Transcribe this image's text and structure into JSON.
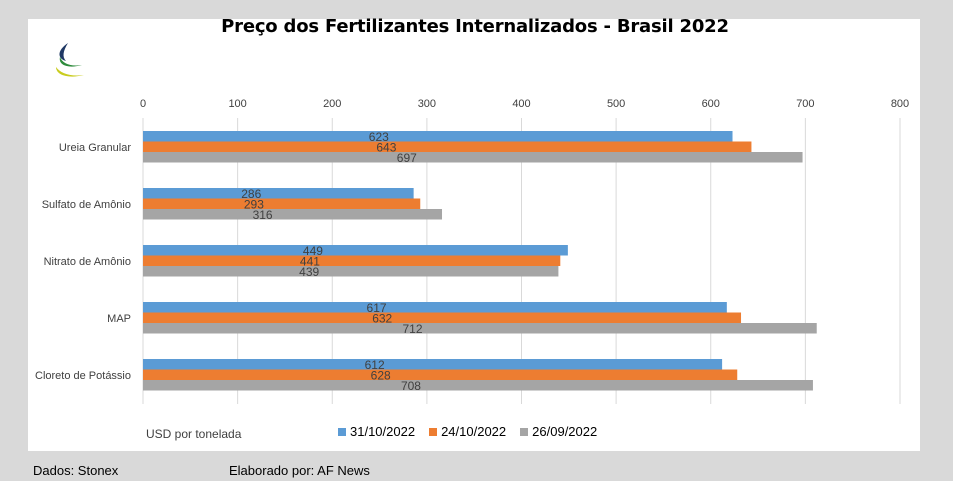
{
  "chart_data": {
    "type": "bar",
    "orientation": "horizontal",
    "title": "Preço dos Fertilizantes Internalizados  - Brasil 2022",
    "categories": [
      "Ureia Granular",
      "Sulfato de Amônio",
      "Nitrato de Amônio",
      "MAP",
      "Cloreto de Potássio"
    ],
    "series": [
      {
        "name": "31/10/2022",
        "color": "#5b9bd5",
        "values": [
          623,
          286,
          449,
          617,
          612
        ]
      },
      {
        "name": "24/10/2022",
        "color": "#ed7d31",
        "values": [
          643,
          293,
          441,
          632,
          628
        ]
      },
      {
        "name": "26/09/2022",
        "color": "#a5a5a5",
        "values": [
          697,
          316,
          439,
          712,
          708
        ]
      }
    ],
    "xlim": [
      0,
      800
    ],
    "xticks": [
      0,
      100,
      200,
      300,
      400,
      500,
      600,
      700,
      800
    ],
    "xlabel": "USD por tonelada",
    "grid": true,
    "legend_position": "bottom"
  },
  "footer": {
    "source": "Dados: Stonex",
    "credit": "Elaborado por: AF News"
  },
  "colors": {
    "background": "#d9d9d9",
    "plot_background": "#ffffff",
    "gridline": "#d9d9d9",
    "logo_navy": "#1f3864",
    "logo_green": "#2e8b3c",
    "logo_yellow": "#c9cc1f"
  },
  "icons": {
    "logo": "af-news-logo-icon"
  }
}
